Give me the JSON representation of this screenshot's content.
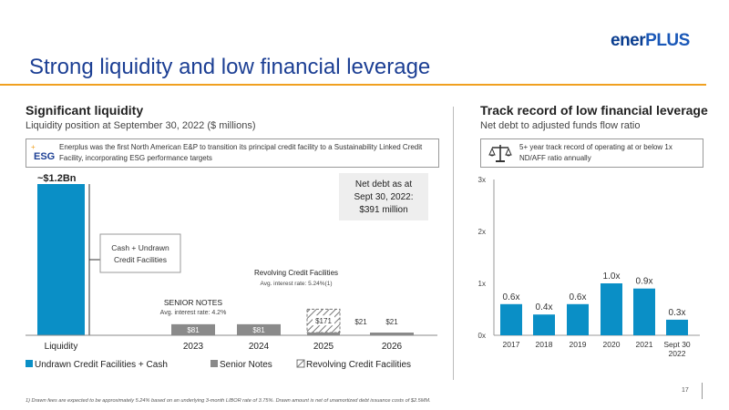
{
  "logo": {
    "part1": "ener",
    "part2": "PLUS"
  },
  "title": "Strong liquidity and low financial leverage",
  "left": {
    "title": "Significant liquidity",
    "subtitle": "Liquidity position at September 30, 2022 ($ millions)",
    "esg_icon": "ESG",
    "esg_text": "Enerplus was the first North American E&P to transition its principal credit facility to a Sustainability Linked Credit Facility, incorporating ESG performance targets",
    "net_debt_box": [
      "Net debt as at",
      "Sept 30, 2022:",
      "$391 million"
    ],
    "cash_label": [
      "Cash + Undrawn",
      "Credit Facilities"
    ],
    "senior_notes_title": "SENIOR NOTES",
    "senior_notes_rate": "Avg. interest rate: 4.2%",
    "rcf_title": "Revolving Credit Facilities",
    "rcf_rate": "Avg. interest rate: 5.24%(1)"
  },
  "right": {
    "title": "Track record of low financial leverage",
    "subtitle": "Net debt to adjusted funds flow ratio",
    "note": [
      "5+ year track record of operating at or below 1x",
      "ND/AFF ratio annually"
    ],
    "icon": "balance-scale-icon"
  },
  "chart_data": [
    {
      "type": "bar",
      "categories": [
        "Liquidity",
        "2023",
        "2024",
        "2025",
        "2026"
      ],
      "series": [
        {
          "name": "Undrawn Credit Facilities + Cash",
          "values": [
            1200,
            0,
            0,
            0,
            0
          ],
          "color": "#0a8fc6"
        },
        {
          "name": "Senior Notes",
          "values": [
            0,
            81,
            81,
            0,
            21
          ],
          "color": "#8a8a8a"
        },
        {
          "name": "Revolving Credit Facilities",
          "values": [
            0,
            0,
            0,
            171,
            0
          ],
          "color": "hatched"
        }
      ],
      "data_labels": [
        "~$1.2Bn",
        "$81",
        "$81",
        "$171",
        "$21"
      ],
      "extra_label_2025": "$21",
      "ylim": [
        0,
        1200
      ]
    },
    {
      "type": "bar",
      "categories": [
        "2017",
        "2018",
        "2019",
        "2020",
        "2021",
        "Sept 30\n2022"
      ],
      "category_lines": [
        [
          "2017"
        ],
        [
          "2018"
        ],
        [
          "2019"
        ],
        [
          "2020"
        ],
        [
          "2021"
        ],
        [
          "Sept 30",
          "2022"
        ]
      ],
      "values": [
        0.6,
        0.4,
        0.6,
        1.0,
        0.9,
        0.3
      ],
      "data_labels": [
        "0.6x",
        "0.4x",
        "0.6x",
        "1.0x",
        "0.9x",
        "0.3x"
      ],
      "yticks": [
        "0x",
        "1x",
        "2x",
        "3x"
      ],
      "ylim": [
        0,
        3
      ],
      "color": "#0a8fc6"
    }
  ],
  "page_number": "17",
  "footnote": "1)  Drawn fees are expected to be approximately 5.24% based on an underlying 3-month LIBOR rate of 3.75%. Drawn amount is net of unamortized debt issuance costs of $2.5MM."
}
